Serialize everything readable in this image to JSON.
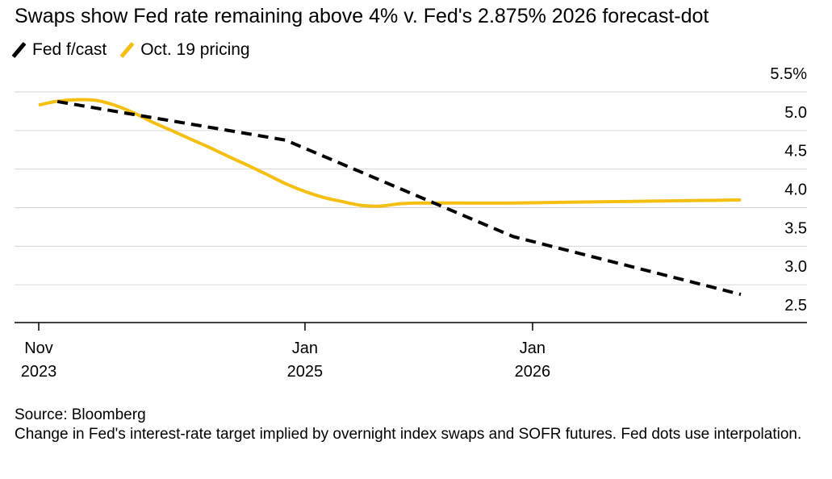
{
  "chart_data": {
    "type": "line",
    "title": "Swaps show Fed rate remaining above 4% v. Fed's 2.875% 2026 forecast-dot",
    "xlabel": "",
    "ylabel": "",
    "ylim": [
      2.5,
      5.5
    ],
    "yticks": [
      {
        "value": 5.5,
        "label": "5.5%"
      },
      {
        "value": 5.0,
        "label": "5.0"
      },
      {
        "value": 4.5,
        "label": "4.5"
      },
      {
        "value": 4.0,
        "label": "4.0"
      },
      {
        "value": 3.5,
        "label": "3.5"
      },
      {
        "value": 3.0,
        "label": "3.0"
      },
      {
        "value": 2.5,
        "label": "2.5"
      }
    ],
    "xticks": [
      {
        "date": "2023-11-01",
        "line1": "Nov",
        "line2": "2023"
      },
      {
        "date": "2025-01-01",
        "line1": "Jan",
        "line2": "2025"
      },
      {
        "date": "2026-01-01",
        "line1": "Jan",
        "line2": "2026"
      }
    ],
    "xrange": [
      "2023-11-01",
      "2026-12-01"
    ],
    "grid": true,
    "legend_position": "top-left",
    "series": [
      {
        "name": "Fed f/cast",
        "color": "#000000",
        "style": "dashed",
        "points": [
          [
            "2023-12-01",
            5.375
          ],
          [
            "2024-12-01",
            4.875
          ],
          [
            "2025-12-01",
            3.625
          ],
          [
            "2026-12-01",
            2.875
          ]
        ]
      },
      {
        "name": "Oct. 19 pricing",
        "color": "#f5bf12",
        "style": "solid",
        "points": [
          [
            "2023-11-01",
            5.33
          ],
          [
            "2023-12-01",
            5.38
          ],
          [
            "2024-01-01",
            5.4
          ],
          [
            "2024-02-01",
            5.39
          ],
          [
            "2024-03-01",
            5.33
          ],
          [
            "2024-04-01",
            5.23
          ],
          [
            "2024-05-01",
            5.11
          ],
          [
            "2024-06-01",
            5.0
          ],
          [
            "2024-07-01",
            4.89
          ],
          [
            "2024-08-01",
            4.78
          ],
          [
            "2024-09-01",
            4.66
          ],
          [
            "2024-10-01",
            4.55
          ],
          [
            "2024-11-01",
            4.43
          ],
          [
            "2024-12-01",
            4.31
          ],
          [
            "2025-01-01",
            4.21
          ],
          [
            "2025-02-01",
            4.13
          ],
          [
            "2025-03-01",
            4.08
          ],
          [
            "2025-04-01",
            4.03
          ],
          [
            "2025-05-01",
            4.02
          ],
          [
            "2025-06-01",
            4.05
          ],
          [
            "2025-07-01",
            4.06
          ],
          [
            "2025-09-01",
            4.06
          ],
          [
            "2025-12-01",
            4.06
          ],
          [
            "2026-03-01",
            4.07
          ],
          [
            "2026-06-01",
            4.08
          ],
          [
            "2026-09-01",
            4.09
          ],
          [
            "2026-12-01",
            4.1
          ]
        ]
      }
    ]
  },
  "footer": {
    "source": "Source: Bloomberg",
    "note": "Change in Fed's interest-rate target implied by overnight index swaps and SOFR futures. Fed dots use interpolation."
  }
}
